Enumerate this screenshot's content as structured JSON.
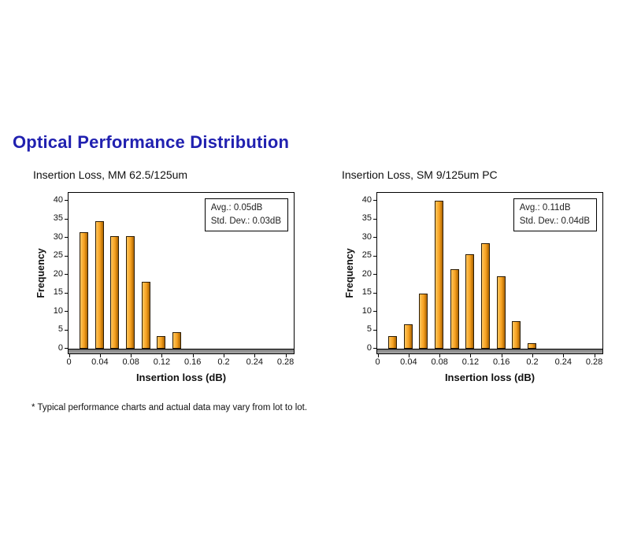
{
  "page": {
    "title": "Optical Performance Distribution",
    "footnote": "* Typical performance charts and actual data may vary from lot to lot."
  },
  "colors": {
    "title_blue": "#2121b0",
    "bar_fill": "#f6a01f",
    "bar_light": "#ffc75e",
    "bar_dark": "#aa6400",
    "bar_border": "#2b1c05"
  },
  "chart_data": [
    {
      "type": "bar",
      "title": "Insertion Loss, MM 62.5/125um",
      "xlabel": "Insertion loss (dB)",
      "ylabel": "Frequency",
      "ylim": [
        0,
        40
      ],
      "ytick_step": 5,
      "grid": "off",
      "xticks": [
        "0",
        "0.04",
        "0.08",
        "0.12",
        "0.16",
        "0.2",
        "0.24",
        "0.28"
      ],
      "x": [
        0.02,
        0.04,
        0.06,
        0.08,
        0.1,
        0.12,
        0.14
      ],
      "values": [
        31.5,
        34.5,
        30.5,
        30.5,
        18,
        3.5,
        4.5
      ],
      "annotation": [
        "Avg.: 0.05dB",
        "Std. Dev.: 0.03dB"
      ]
    },
    {
      "type": "bar",
      "title": "Insertion Loss, SM 9/125um PC",
      "xlabel": "Insertion loss (dB)",
      "ylabel": "Frequency",
      "ylim": [
        0,
        40
      ],
      "ytick_step": 5,
      "grid": "off",
      "xticks": [
        "0",
        "0.04",
        "0.08",
        "0.12",
        "0.16",
        "0.2",
        "0.24",
        "0.28"
      ],
      "x": [
        0.02,
        0.04,
        0.06,
        0.08,
        0.1,
        0.12,
        0.14,
        0.16,
        0.18,
        0.2
      ],
      "values": [
        3.5,
        6.5,
        15,
        40,
        21.5,
        25.5,
        28.5,
        19.5,
        7.5,
        1.5
      ],
      "annotation": [
        "Avg.: 0.11dB",
        "Std. Dev.: 0.04dB"
      ]
    }
  ]
}
